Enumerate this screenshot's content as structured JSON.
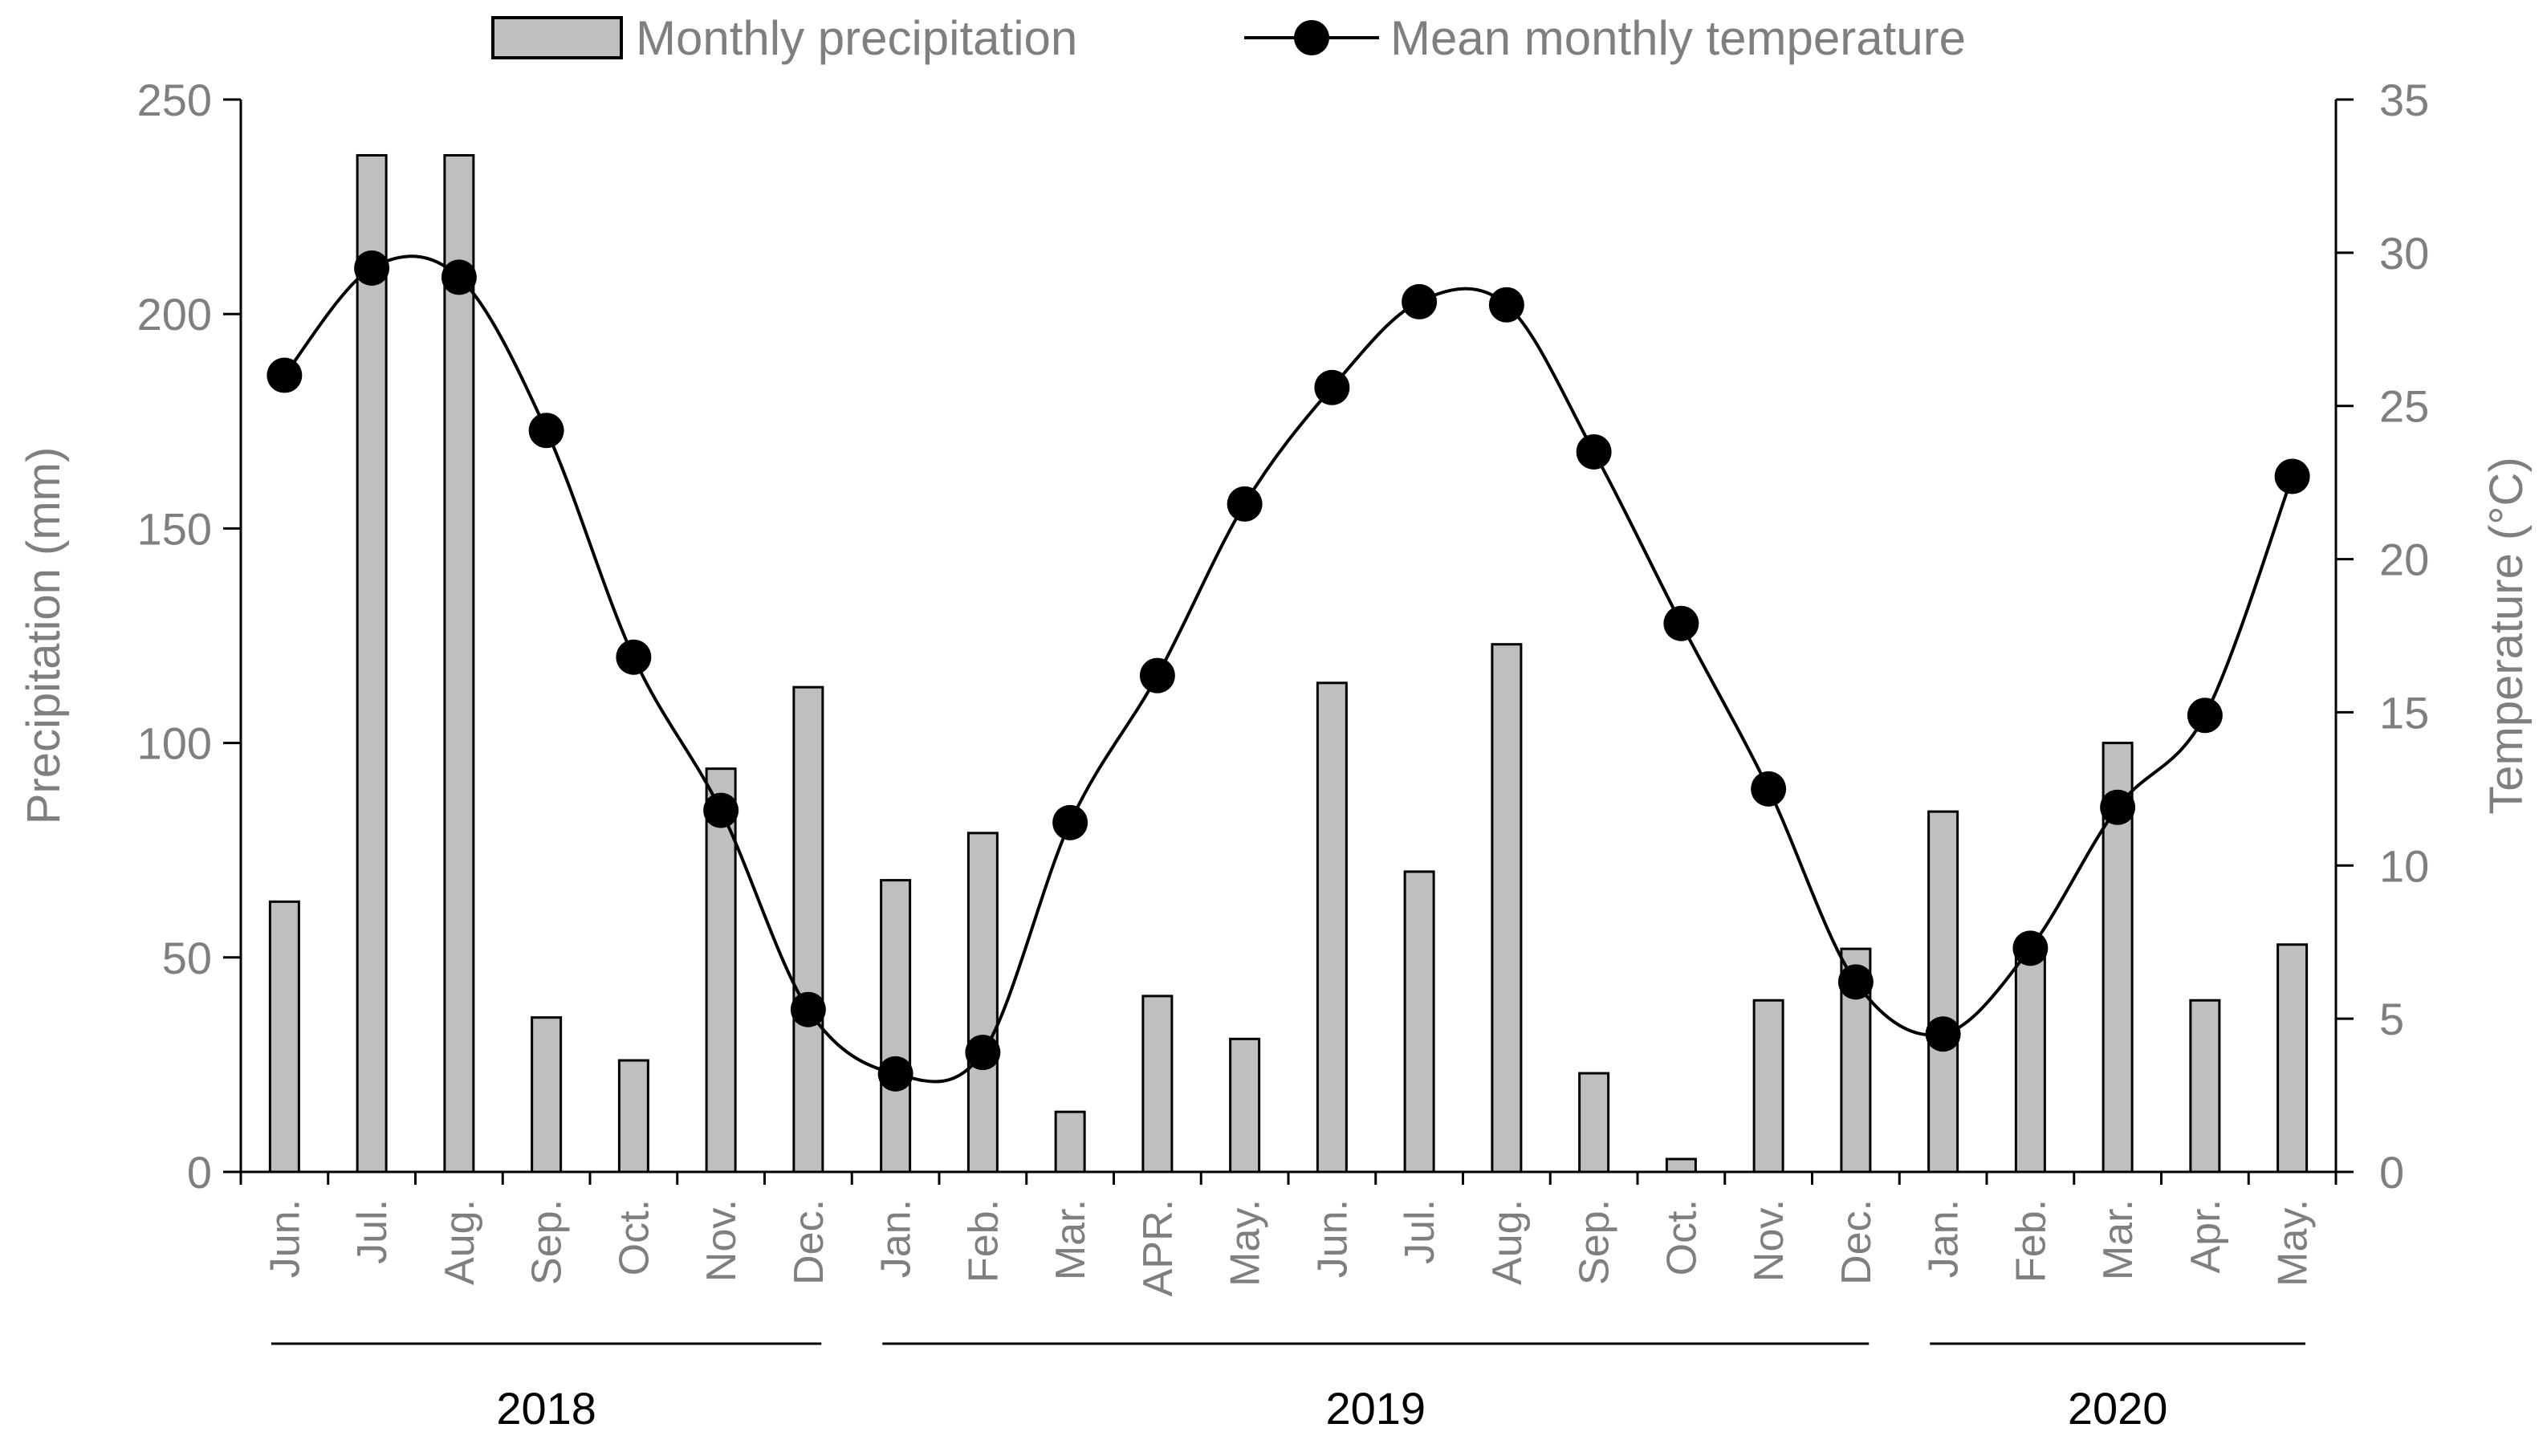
{
  "chart_data": {
    "type": "bar+line",
    "legend": {
      "placement": "top-center",
      "entries": [
        "Monthly precipitation",
        "Mean monthly temperature"
      ]
    },
    "categories": [
      "Jun.",
      "Jul.",
      "Aug.",
      "Sep.",
      "Oct.",
      "Nov.",
      "Dec.",
      "Jan.",
      "Feb.",
      "Mar.",
      "APR.",
      "May.",
      "Jun.",
      "Jul.",
      "Aug.",
      "Sep.",
      "Oct.",
      "Nov.",
      "Dec.",
      "Jan.",
      "Feb.",
      "Mar.",
      "Apr.",
      "May."
    ],
    "years": [
      {
        "label": "2018",
        "from": 0,
        "to": 6
      },
      {
        "label": "2019",
        "from": 7,
        "to": 18
      },
      {
        "label": "2020",
        "from": 19,
        "to": 23
      }
    ],
    "series": [
      {
        "name": "Monthly precipitation",
        "type": "bar",
        "axis": "left",
        "color": "#bfbfbf",
        "values": [
          63,
          237,
          237,
          36,
          26,
          94,
          113,
          68,
          79,
          14,
          41,
          31,
          114,
          70,
          123,
          23,
          3,
          40,
          52,
          84,
          50,
          100,
          40,
          53
        ]
      },
      {
        "name": "Mean monthly temperature",
        "type": "line",
        "axis": "right",
        "color": "#000000",
        "values": [
          26.0,
          29.5,
          29.2,
          24.2,
          16.8,
          11.8,
          5.3,
          3.2,
          3.9,
          11.4,
          16.2,
          21.8,
          25.6,
          28.4,
          28.3,
          23.5,
          17.9,
          12.5,
          6.2,
          4.5,
          7.3,
          11.9,
          14.9,
          22.7
        ]
      }
    ],
    "y_left": {
      "label": "Precipitation (mm)",
      "range": [
        0,
        250
      ],
      "ticks": [
        "0",
        "50",
        "100",
        "150",
        "200",
        "250"
      ]
    },
    "y_right": {
      "label": "Temperature (°C)",
      "range": [
        0,
        35
      ],
      "ticks": [
        "0",
        "5",
        "10",
        "15",
        "20",
        "25",
        "30",
        "35"
      ]
    },
    "grid": false
  }
}
